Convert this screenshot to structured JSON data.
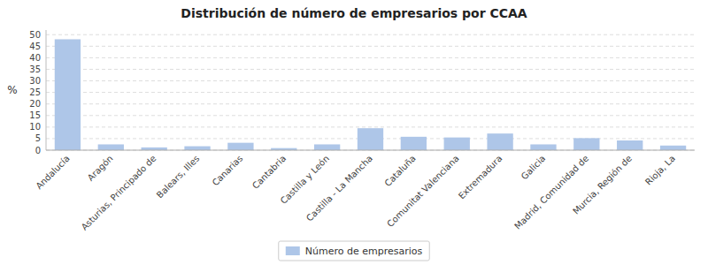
{
  "chart_data": {
    "type": "bar",
    "title": "Distribución de número de empresarios por CCAA",
    "y_label": "%",
    "categories": [
      "Andalucía",
      "Aragón",
      "Asturias, Principado de",
      "Balears, Illes",
      "Canarias",
      "Cantabria",
      "Castilla y León",
      "Castilla - La Mancha",
      "Cataluña",
      "Comunitat Valenciana",
      "Extremadura",
      "Galicia",
      "Madrid, Comunidad de",
      "Murcia, Región de",
      "Rioja, La"
    ],
    "series": [
      {
        "name": "Número de empresarios",
        "color": "#aec6e8",
        "values": [
          48.0,
          2.5,
          1.2,
          1.7,
          3.2,
          0.9,
          2.5,
          9.5,
          5.8,
          5.5,
          7.2,
          2.5,
          5.2,
          4.2,
          2.0
        ]
      }
    ],
    "ylim": [
      0,
      52
    ],
    "yticks": [
      0,
      5,
      10,
      15,
      20,
      25,
      30,
      35,
      40,
      45,
      50
    ],
    "grid": true,
    "legend": "bottom"
  }
}
